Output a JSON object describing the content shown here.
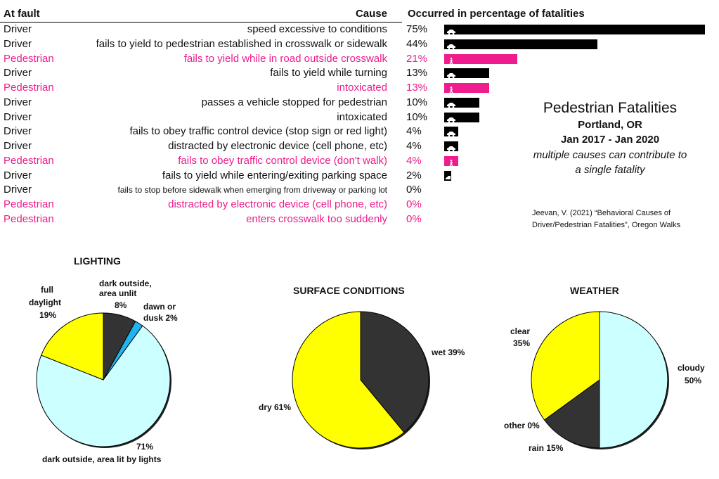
{
  "table": {
    "headers": {
      "at_fault": "At fault",
      "cause": "Cause",
      "pct": "Occurred in percentage of fatalities"
    },
    "rows": [
      {
        "at_fault": "Driver",
        "cause": "speed excessive to conditions",
        "pct_label": "75%",
        "value": 75,
        "type": "driver"
      },
      {
        "at_fault": "Driver",
        "cause": "fails to yield to pedestrian established in crosswalk or sidewalk",
        "pct_label": "44%",
        "value": 44,
        "type": "driver"
      },
      {
        "at_fault": "Pedestrian",
        "cause": "fails to yield while in road outside crosswalk",
        "pct_label": "21%",
        "value": 21,
        "type": "pedestrian"
      },
      {
        "at_fault": "Driver",
        "cause": "fails to yield while turning",
        "pct_label": "13%",
        "value": 13,
        "type": "driver"
      },
      {
        "at_fault": "Pedestrian",
        "cause": "intoxicated",
        "pct_label": "13%",
        "value": 13,
        "type": "pedestrian"
      },
      {
        "at_fault": "Driver",
        "cause": "passes a vehicle stopped for pedestrian",
        "pct_label": "10%",
        "value": 10,
        "type": "driver"
      },
      {
        "at_fault": "Driver",
        "cause": "intoxicated",
        "pct_label": "10%",
        "value": 10,
        "type": "driver"
      },
      {
        "at_fault": "Driver",
        "cause": "fails to obey traffic control device (stop sign or red light)",
        "pct_label": "4%",
        "value": 4,
        "type": "driver"
      },
      {
        "at_fault": "Driver",
        "cause": "distracted by electronic device (cell phone, etc)",
        "pct_label": "4%",
        "value": 4,
        "type": "driver"
      },
      {
        "at_fault": "Pedestrian",
        "cause": "fails to obey traffic control device (don't walk)",
        "pct_label": "4%",
        "value": 4,
        "type": "pedestrian"
      },
      {
        "at_fault": "Driver",
        "cause": "fails to yield while entering/exiting parking space",
        "pct_label": "2%",
        "value": 2,
        "type": "driver"
      },
      {
        "at_fault": "Driver",
        "cause": "fails to stop before sidewalk when emerging from driveway or parking lot",
        "pct_label": "0%",
        "value": 0,
        "type": "driver",
        "small": true
      },
      {
        "at_fault": "Pedestrian",
        "cause": "distracted by electronic device (cell phone, etc)",
        "pct_label": "0%",
        "value": 0,
        "type": "pedestrian"
      },
      {
        "at_fault": "Pedestrian",
        "cause": "enters crosswalk too suddenly",
        "pct_label": "0%",
        "value": 0,
        "type": "pedestrian"
      }
    ]
  },
  "title_block": {
    "title": "Pedestrian Fatalities",
    "location": "Portland, OR",
    "period": "Jan 2017 - Jan 2020",
    "note1": "multiple causes can contribute to",
    "note2": "a single fatality"
  },
  "citation": {
    "line1": "Jeevan, V. (2021) “Behavioral Causes of",
    "line2": "Driver/Pedestrian Fatalities”, Oregon Walks"
  },
  "colors": {
    "driver": "#000000",
    "pedestrian": "#ee1c8c",
    "dark": "#333333",
    "yellow": "#ffff00",
    "lightcyan": "#ccffff",
    "blue": "#1fb4ef"
  },
  "chart_data": [
    {
      "type": "bar",
      "title": "Occurred in percentage of fatalities",
      "categories": [
        "speed excessive to conditions",
        "fails to yield to pedestrian established in crosswalk or sidewalk",
        "fails to yield while in road outside crosswalk",
        "fails to yield while turning",
        "intoxicated (pedestrian)",
        "passes a vehicle stopped for pedestrian",
        "intoxicated (driver)",
        "fails to obey traffic control device (stop sign or red light)",
        "distracted by electronic device (driver)",
        "fails to obey traffic control device (don't walk)",
        "fails to yield while entering/exiting parking space",
        "fails to stop before sidewalk when emerging from driveway or parking lot",
        "distracted by electronic device (pedestrian)",
        "enters crosswalk too suddenly"
      ],
      "values": [
        75,
        44,
        21,
        13,
        13,
        10,
        10,
        4,
        4,
        4,
        2,
        0,
        0,
        0
      ]
    },
    {
      "type": "pie",
      "title": "LIGHTING",
      "slices": [
        {
          "label": "dark outside, area unlit",
          "value": 8,
          "color": "#333333"
        },
        {
          "label": "dawn or dusk",
          "value": 2,
          "color": "#1fb4ef"
        },
        {
          "label": "dark outside, area lit by lights",
          "value": 71,
          "color": "#ccffff"
        },
        {
          "label": "full daylight",
          "value": 19,
          "color": "#ffff00"
        }
      ]
    },
    {
      "type": "pie",
      "title": "SURFACE CONDITIONS",
      "slices": [
        {
          "label": "wet",
          "value": 39,
          "color": "#333333"
        },
        {
          "label": "dry",
          "value": 61,
          "color": "#ffff00"
        }
      ]
    },
    {
      "type": "pie",
      "title": "WEATHER",
      "slices": [
        {
          "label": "cloudy",
          "value": 50,
          "color": "#ccffff"
        },
        {
          "label": "rain",
          "value": 15,
          "color": "#333333"
        },
        {
          "label": "other",
          "value": 0,
          "color": "#1fb4ef"
        },
        {
          "label": "clear",
          "value": 35,
          "color": "#ffff00"
        }
      ]
    }
  ],
  "pie_labels": {
    "lighting": {
      "l_unlit1": "dark outside,",
      "l_unlit2": "area unlit",
      "l_unlit3": "8%",
      "l_dawn1": "dawn or",
      "l_dawn2": "dusk 2%",
      "l_day1": "full",
      "l_day2": "daylight",
      "l_day3": "19%",
      "l_lit1": "71%",
      "l_lit2": "dark outside, area lit by lights"
    },
    "surface": {
      "wet": "wet 39%",
      "dry": "dry 61%"
    },
    "weather": {
      "clear1": "clear",
      "clear2": "35%",
      "cloudy1": "cloudy",
      "cloudy2": "50%",
      "other": "other 0%",
      "rain": "rain 15%"
    }
  }
}
